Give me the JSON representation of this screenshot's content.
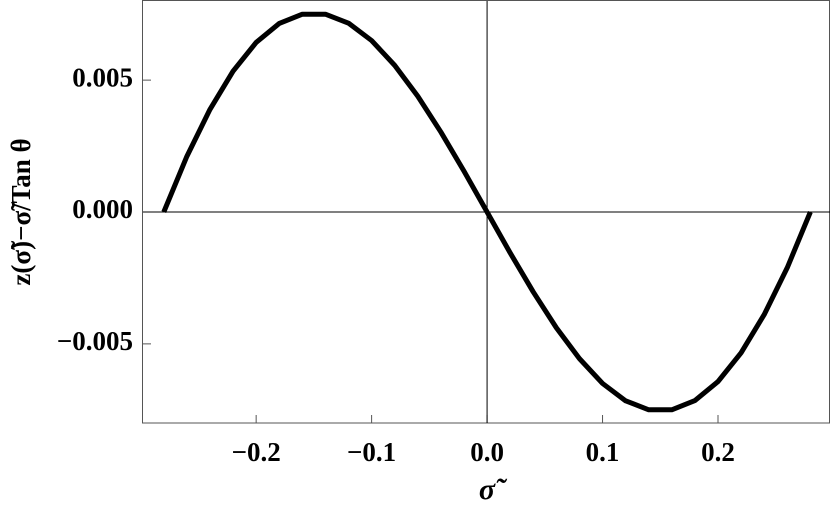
{
  "chart_data": {
    "type": "line",
    "x_label": "σ̃",
    "y_label": "z(σ̃)−σ̃/Tan θ",
    "x": [
      -0.28,
      -0.26,
      -0.24,
      -0.22,
      -0.2,
      -0.18,
      -0.16,
      -0.14,
      -0.12,
      -0.1,
      -0.08,
      -0.06,
      -0.04,
      -0.02,
      0,
      0.02,
      0.04,
      0.06,
      0.08,
      0.1,
      0.12,
      0.14,
      0.16,
      0.18,
      0.2,
      0.22,
      0.24,
      0.26,
      0.28
    ],
    "values": [
      0,
      0.00211,
      0.00389,
      0.00534,
      0.00643,
      0.00715,
      0.0075,
      0.0075,
      0.00716,
      0.0065,
      0.00556,
      0.00439,
      0.00303,
      0.00155,
      0,
      -0.00155,
      -0.00303,
      -0.00439,
      -0.00556,
      -0.0065,
      -0.00716,
      -0.0075,
      -0.0075,
      -0.00715,
      -0.00643,
      -0.00534,
      -0.00389,
      -0.00211,
      0
    ],
    "color": "#000000",
    "xlim": [
      -0.298,
      0.297
    ],
    "ylim": [
      -0.008,
      0.008
    ],
    "xticks": [
      {
        "value": -0.2,
        "label": "−0.2"
      },
      {
        "value": -0.1,
        "label": "−0.1"
      },
      {
        "value": 0,
        "label": "0.0"
      },
      0.1,
      0.2
    ],
    "yticks": [
      {
        "value": -0.005,
        "label": "−0.005"
      },
      {
        "value": 0,
        "label": "0.000"
      },
      0.005
    ]
  }
}
